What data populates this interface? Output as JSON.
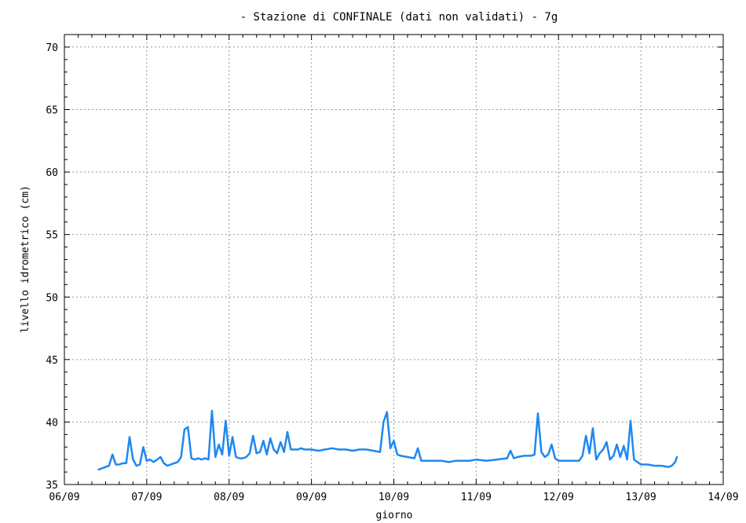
{
  "chart_data": {
    "type": "line",
    "title": "- Stazione di CONFINALE (dati non validati) - 7g",
    "xlabel": "giorno",
    "ylabel": "livello idrometrico (cm)",
    "x_ticks": [
      "06/09",
      "07/09",
      "08/09",
      "09/09",
      "10/09",
      "11/09",
      "12/09",
      "13/09",
      "14/09"
    ],
    "y_ticks": [
      35,
      40,
      45,
      50,
      55,
      60,
      65,
      70
    ],
    "xlim": [
      "06/09 00:00",
      "14/09 00:00"
    ],
    "ylim": [
      35,
      71
    ],
    "grid": true,
    "line_color": "#1e88f0",
    "series": [
      {
        "x": [
          "06/09 10:00",
          "06/09 11:00",
          "06/09 12:00",
          "06/09 13:00",
          "06/09 14:00",
          "06/09 15:00",
          "06/09 16:00",
          "06/09 17:00",
          "06/09 18:00",
          "06/09 19:00",
          "06/09 20:00",
          "06/09 21:00",
          "06/09 22:00",
          "06/09 23:00",
          "07/09 00:00",
          "07/09 01:00",
          "07/09 02:00",
          "07/09 03:00",
          "07/09 04:00",
          "07/09 05:00",
          "07/09 06:00",
          "07/09 07:00",
          "07/09 08:00",
          "07/09 09:00",
          "07/09 10:00",
          "07/09 11:00",
          "07/09 12:00",
          "07/09 13:00",
          "07/09 14:00",
          "07/09 15:00",
          "07/09 16:00",
          "07/09 17:00",
          "07/09 18:00",
          "07/09 19:00",
          "07/09 20:00",
          "07/09 21:00",
          "07/09 22:00",
          "07/09 23:00",
          "08/09 00:00",
          "08/09 01:00",
          "08/09 02:00",
          "08/09 03:00",
          "08/09 04:00",
          "08/09 05:00",
          "08/09 06:00",
          "08/09 07:00",
          "08/09 08:00",
          "08/09 09:00",
          "08/09 10:00",
          "08/09 11:00",
          "08/09 12:00",
          "08/09 13:00",
          "08/09 14:00",
          "08/09 15:00",
          "08/09 16:00",
          "08/09 17:00",
          "08/09 18:00",
          "08/09 19:00",
          "08/09 20:00",
          "08/09 21:00",
          "08/09 22:00",
          "08/09 23:00",
          "09/09 00:00",
          "09/09 02:00",
          "09/09 04:00",
          "09/09 06:00",
          "09/09 08:00",
          "09/09 10:00",
          "09/09 12:00",
          "09/09 14:00",
          "09/09 16:00",
          "09/09 18:00",
          "09/09 20:00",
          "09/09 21:00",
          "09/09 22:00",
          "09/09 23:00",
          "10/09 00:00",
          "10/09 01:00",
          "10/09 02:00",
          "10/09 04:00",
          "10/09 06:00",
          "10/09 07:00",
          "10/09 08:00",
          "10/09 10:00",
          "10/09 12:00",
          "10/09 14:00",
          "10/09 16:00",
          "10/09 18:00",
          "10/09 20:00",
          "10/09 22:00",
          "11/09 00:00",
          "11/09 03:00",
          "11/09 06:00",
          "11/09 09:00",
          "11/09 10:00",
          "11/09 11:00",
          "11/09 12:00",
          "11/09 14:00",
          "11/09 16:00",
          "11/09 17:00",
          "11/09 18:00",
          "11/09 19:00",
          "11/09 20:00",
          "11/09 21:00",
          "11/09 22:00",
          "11/09 23:00",
          "12/09 00:00",
          "12/09 02:00",
          "12/09 04:00",
          "12/09 06:00",
          "12/09 07:00",
          "12/09 08:00",
          "12/09 09:00",
          "12/09 10:00",
          "12/09 11:00",
          "12/09 12:00",
          "12/09 13:00",
          "12/09 14:00",
          "12/09 15:00",
          "12/09 16:00",
          "12/09 17:00",
          "12/09 18:00",
          "12/09 19:00",
          "12/09 20:00",
          "12/09 21:00",
          "12/09 22:00",
          "13/09 00:00",
          "13/09 02:00",
          "13/09 04:00",
          "13/09 06:00",
          "13/09 08:00",
          "13/09 09:00",
          "13/09 10:00",
          "13/09 10:30"
        ],
        "y": [
          36.2,
          36.3,
          36.4,
          36.5,
          37.4,
          36.6,
          36.6,
          36.7,
          36.7,
          38.8,
          37.0,
          36.5,
          36.6,
          38.0,
          36.9,
          37.0,
          36.8,
          37.0,
          37.2,
          36.7,
          36.5,
          36.6,
          36.7,
          36.8,
          37.2,
          39.4,
          39.6,
          37.1,
          37.0,
          37.1,
          37.0,
          37.1,
          37.0,
          40.9,
          37.2,
          38.2,
          37.4,
          40.1,
          37.3,
          38.8,
          37.2,
          37.1,
          37.1,
          37.2,
          37.5,
          38.9,
          37.5,
          37.6,
          38.5,
          37.4,
          38.7,
          37.8,
          37.5,
          38.4,
          37.6,
          39.2,
          37.8,
          37.8,
          37.8,
          37.9,
          37.8,
          37.8,
          37.8,
          37.7,
          37.8,
          37.9,
          37.8,
          37.8,
          37.7,
          37.8,
          37.8,
          37.7,
          37.6,
          40.0,
          40.8,
          37.9,
          38.5,
          37.4,
          37.3,
          37.2,
          37.1,
          37.9,
          36.9,
          36.9,
          36.9,
          36.9,
          36.8,
          36.9,
          36.9,
          36.9,
          37.0,
          36.9,
          37.0,
          37.1,
          37.7,
          37.1,
          37.2,
          37.3,
          37.3,
          37.4,
          40.7,
          37.6,
          37.2,
          37.4,
          38.2,
          37.1,
          36.9,
          36.9,
          36.9,
          36.9,
          37.3,
          38.9,
          37.5,
          39.5,
          37.0,
          37.5,
          37.8,
          38.4,
          37.0,
          37.3,
          38.2,
          37.2,
          38.1,
          37.0,
          40.1,
          37.0,
          36.6,
          36.6,
          36.5,
          36.5,
          36.4,
          36.5,
          36.8,
          37.2
        ]
      }
    ]
  }
}
